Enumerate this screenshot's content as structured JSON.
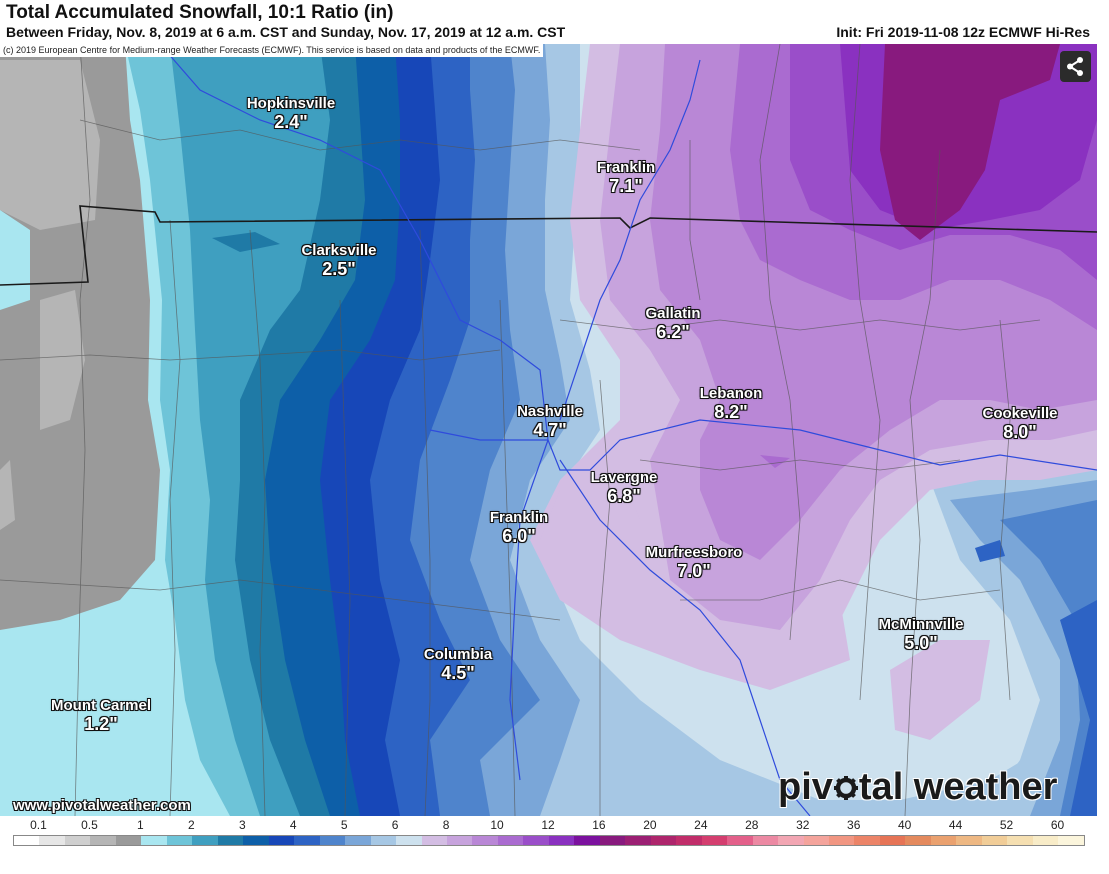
{
  "header": {
    "title": "Total Accumulated Snowfall, 10:1 Ratio (in)",
    "subtitle": "Between Friday, Nov. 8, 2019 at 6 a.m. CST and Sunday, Nov. 17, 2019 at 12 a.m. CST",
    "init": "Init: Fri 2019-11-08 12z ECMWF Hi-Res"
  },
  "copyright": "(c) 2019 European Centre for Medium-range Weather Forecasts (ECMWF). This service is based on data and products of the ECMWF.",
  "share_icon": "share-icon",
  "cities": [
    {
      "name": "Hopkinsville",
      "value": "2.4\""
    },
    {
      "name": "Clarksville",
      "value": "2.5\""
    },
    {
      "name": "Franklin",
      "value": "7.1\""
    },
    {
      "name": "Gallatin",
      "value": "6.2\""
    },
    {
      "name": "Lebanon",
      "value": "8.2\""
    },
    {
      "name": "Nashville",
      "value": "4.7\""
    },
    {
      "name": "Cookeville",
      "value": "8.0\""
    },
    {
      "name": "Lavergne",
      "value": "6.8\""
    },
    {
      "name": "Franklin",
      "value": "6.0\""
    },
    {
      "name": "Murfreesboro",
      "value": "7.0\""
    },
    {
      "name": "McMinnville",
      "value": "5.0\""
    },
    {
      "name": "Columbia",
      "value": "4.5\""
    },
    {
      "name": "Mount Carmel",
      "value": "1.2\""
    }
  ],
  "site_url": "www.pivotalweather.com",
  "brand": {
    "before": "piv",
    "after": "tal weather"
  },
  "scale": {
    "labels": [
      "0.1",
      "0.5",
      "1",
      "2",
      "3",
      "4",
      "5",
      "6",
      "8",
      "10",
      "12",
      "16",
      "20",
      "24",
      "28",
      "32",
      "36",
      "40",
      "44",
      "52",
      "60"
    ],
    "colors": [
      "#ffffff",
      "#e6e6e6",
      "#cfcfcf",
      "#b5b5b5",
      "#9a9a9a",
      "#a9e6f0",
      "#6ec4d8",
      "#3f9fc0",
      "#1f7aa6",
      "#0d5fa8",
      "#1747b8",
      "#2d63c4",
      "#4f84cc",
      "#7aa6d8",
      "#a6c7e4",
      "#cde1ee",
      "#d3bde3",
      "#c7a3dd",
      "#b987d6",
      "#aa6bd0",
      "#9a4ec9",
      "#8a31c0",
      "#7b119e",
      "#881a7e",
      "#9b1f73",
      "#ae256c",
      "#c12d6a",
      "#d43e6f",
      "#e3608a",
      "#ec89a3",
      "#f2a6b3",
      "#f4a49c",
      "#f19682",
      "#ec8468",
      "#e67456",
      "#e48a5e",
      "#eaa16f",
      "#eeb883",
      "#f1cd98",
      "#f5dfb1",
      "#f8ecc8",
      "#fbf5dc"
    ]
  }
}
